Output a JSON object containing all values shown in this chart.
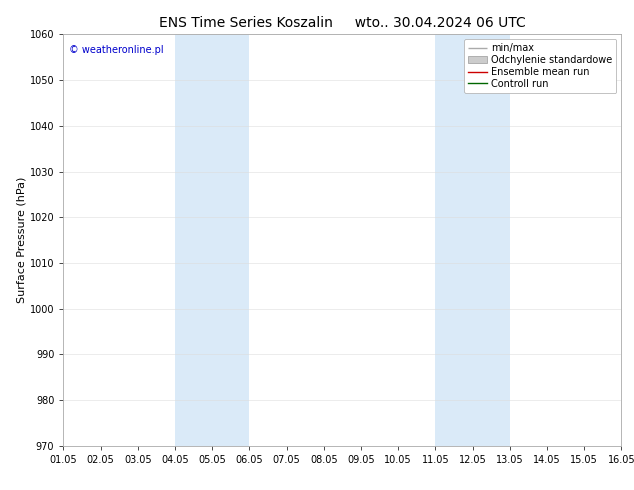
{
  "title": "ENS Time Series Koszalin",
  "title2": "wto.. 30.04.2024 06 UTC",
  "ylabel": "Surface Pressure (hPa)",
  "ylim": [
    970,
    1060
  ],
  "yticks": [
    970,
    980,
    990,
    1000,
    1010,
    1020,
    1030,
    1040,
    1050,
    1060
  ],
  "xlim_start": 0,
  "xlim_end": 15,
  "xtick_labels": [
    "01.05",
    "02.05",
    "03.05",
    "04.05",
    "05.05",
    "06.05",
    "07.05",
    "08.05",
    "09.05",
    "10.05",
    "11.05",
    "12.05",
    "13.05",
    "14.05",
    "15.05",
    "16.05"
  ],
  "xtick_positions": [
    0,
    1,
    2,
    3,
    4,
    5,
    6,
    7,
    8,
    9,
    10,
    11,
    12,
    13,
    14,
    15
  ],
  "shaded_bands": [
    {
      "xmin": 3,
      "xmax": 5,
      "color": "#daeaf8"
    },
    {
      "xmin": 10,
      "xmax": 12,
      "color": "#daeaf8"
    }
  ],
  "copyright_text": "© weatheronline.pl",
  "copyright_color": "#0000cc",
  "legend_items": [
    {
      "label": "min/max",
      "color": "#aaaaaa",
      "lw": 1.0
    },
    {
      "label": "Odchylenie standardowe",
      "color": "#cccccc",
      "lw": 5
    },
    {
      "label": "Ensemble mean run",
      "color": "#cc0000",
      "lw": 1.0
    },
    {
      "label": "Controll run",
      "color": "#006600",
      "lw": 1.0
    }
  ],
  "background_color": "#ffffff",
  "plot_background": "#ffffff",
  "title_fontsize": 10,
  "axis_label_fontsize": 8,
  "tick_fontsize": 7,
  "legend_fontsize": 7
}
